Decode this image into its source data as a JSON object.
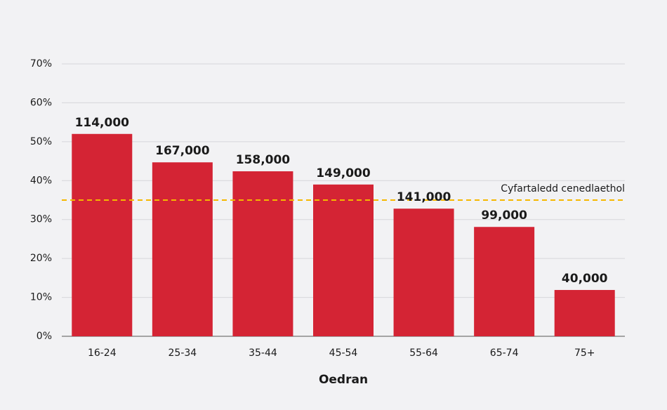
{
  "chart_data": {
    "type": "bar",
    "categories": [
      "16-24",
      "25-34",
      "35-44",
      "45-54",
      "55-64",
      "65-74",
      "75+"
    ],
    "values": [
      52,
      44.7,
      42.4,
      39,
      32.8,
      28.1,
      11.9
    ],
    "color": "#d42434",
    "counts": [
      {
        "value": 114000,
        "label": "114,000"
      },
      {
        "value": 167000,
        "label": "167,000"
      },
      {
        "value": 158000,
        "label": "158,000"
      },
      {
        "value": 149000,
        "label": "149,000"
      },
      {
        "value": 141000,
        "label": "141,000"
      },
      {
        "value": 99000,
        "label": "99,000"
      },
      {
        "value": 40000,
        "label": "40,000"
      }
    ],
    "xlabel": "Oedran",
    "ylim": [
      0,
      70
    ],
    "yticks": [
      {
        "value": 0,
        "label": "0%"
      },
      {
        "value": 10,
        "label": "10%"
      },
      {
        "value": 20,
        "label": "20%"
      },
      {
        "value": 30,
        "label": "30%"
      },
      {
        "value": 40,
        "label": "40%"
      },
      {
        "value": 50,
        "label": "50%"
      },
      {
        "value": 60,
        "label": "60%"
      },
      {
        "value": 70,
        "label": "70%"
      }
    ],
    "grid": true,
    "reference_line": {
      "value": 35,
      "label": "Cyfartaledd cenedlaethol",
      "color": "#f5b800"
    }
  }
}
